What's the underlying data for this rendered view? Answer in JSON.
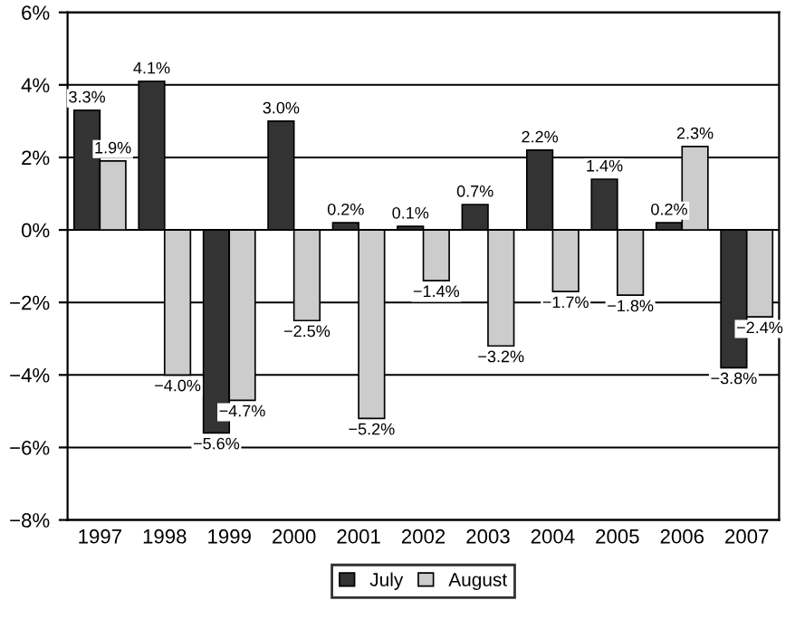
{
  "chart_data": {
    "type": "bar",
    "categories": [
      "1997",
      "1998",
      "1999",
      "2000",
      "2001",
      "2002",
      "2003",
      "2004",
      "2005",
      "2006",
      "2007"
    ],
    "series": [
      {
        "name": "July",
        "color": "#333333",
        "values": [
          3.3,
          4.1,
          -5.6,
          3.0,
          0.2,
          0.1,
          0.7,
          2.2,
          1.4,
          0.2,
          -3.8
        ],
        "value_labels": [
          "3.3%",
          "4.1%",
          "−5.6%",
          "3.0%",
          "0.2%",
          "0.1%",
          "0.7%",
          "2.2%",
          "1.4%",
          "0.2%",
          "−3.8%"
        ]
      },
      {
        "name": "August",
        "color": "#cccccc",
        "values": [
          1.9,
          -4.0,
          -4.7,
          -2.5,
          -5.2,
          -1.4,
          -3.2,
          -1.7,
          -1.8,
          2.3,
          -2.4
        ],
        "value_labels": [
          "1.9%",
          "−4.0%",
          "−4.7%",
          "−2.5%",
          "−5.2%",
          "−1.4%",
          "−3.2%",
          "−1.7%",
          "−1.8%",
          "2.3%",
          "−2.4%"
        ]
      }
    ],
    "ylim": [
      -8,
      6
    ],
    "yticks": [
      {
        "value": -8,
        "label": "−8%"
      },
      {
        "value": -6,
        "label": "−6%"
      },
      {
        "value": -4,
        "label": "−4%"
      },
      {
        "value": -2,
        "label": "−2%"
      },
      {
        "value": 0,
        "label": "0%"
      },
      {
        "value": 2,
        "label": "2%"
      },
      {
        "value": 4,
        "label": "4%"
      },
      {
        "value": 6,
        "label": "6%"
      }
    ],
    "grid": "y",
    "legend": "bottom"
  }
}
